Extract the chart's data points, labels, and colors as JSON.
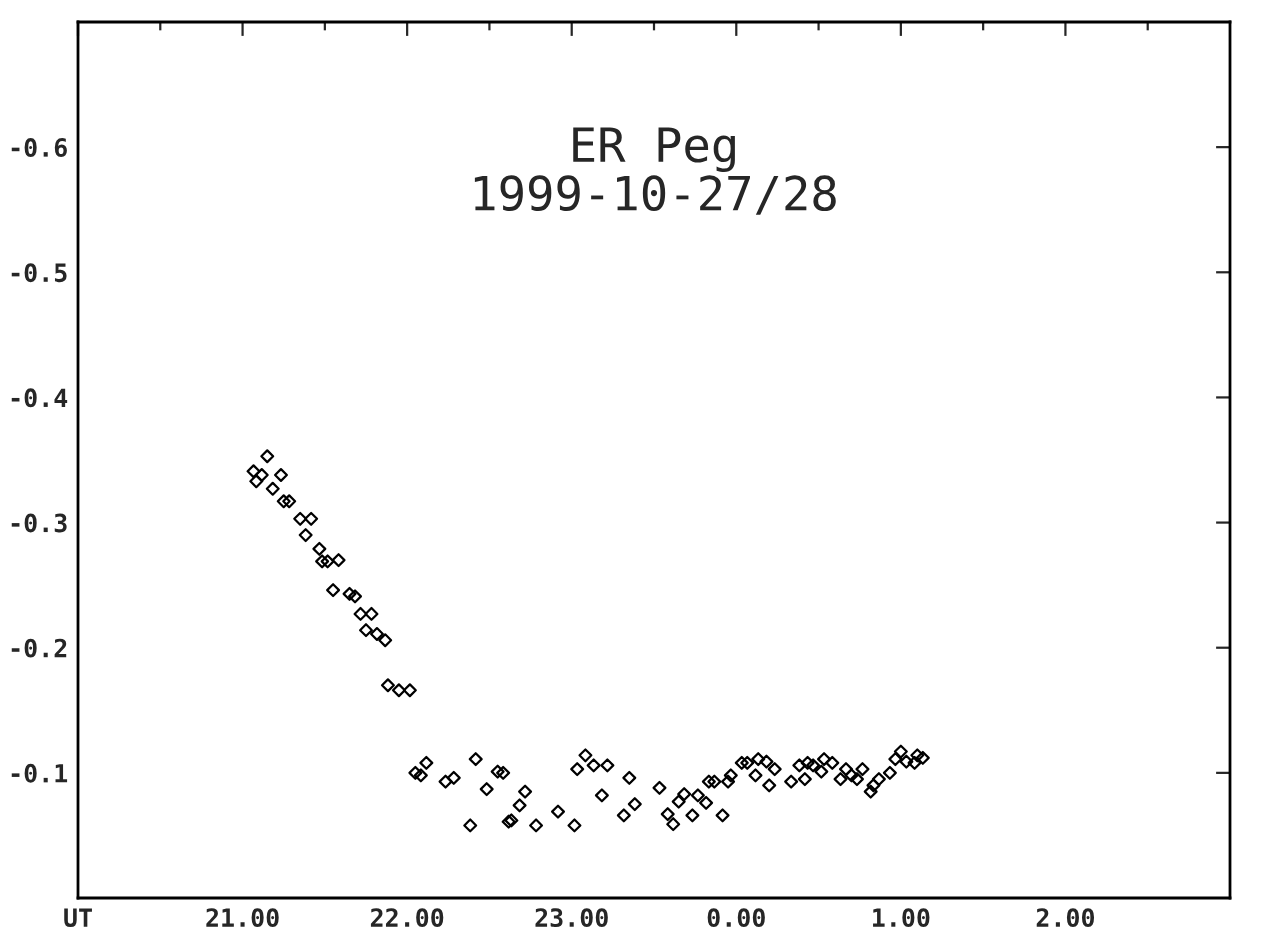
{
  "chart_data": {
    "type": "scatter",
    "title": "ER Peg",
    "subtitle": "1999-10-27/28",
    "x": [
      "1999-10-27T21:09",
      "1999-10-27T21:04",
      "1999-10-27T21:07",
      "1999-10-27T21:05",
      "1999-10-27T21:14",
      "1999-10-27T21:11",
      "1999-10-27T21:15",
      "1999-10-27T21:17",
      "1999-10-27T21:21",
      "1999-10-27T21:25",
      "1999-10-27T21:23",
      "1999-10-27T21:28",
      "1999-10-27T21:29",
      "1999-10-27T21:31",
      "1999-10-27T21:35",
      "1999-10-27T21:33",
      "1999-10-27T21:39",
      "1999-10-27T21:41",
      "1999-10-27T21:43",
      "1999-10-27T21:47",
      "1999-10-27T21:45",
      "1999-10-27T21:49",
      "1999-10-27T21:52",
      "1999-10-27T21:53",
      "1999-10-27T21:57",
      "1999-10-27T22:01",
      "1999-10-27T22:03",
      "1999-10-27T22:05",
      "1999-10-27T22:07",
      "1999-10-27T22:14",
      "1999-10-27T22:17",
      "1999-10-27T22:23",
      "1999-10-27T22:25",
      "1999-10-27T22:29",
      "1999-10-27T22:33",
      "1999-10-27T22:35",
      "1999-10-27T22:37",
      "1999-10-27T22:38",
      "1999-10-27T22:41",
      "1999-10-27T22:43",
      "1999-10-27T22:47",
      "1999-10-27T22:55",
      "1999-10-27T23:01",
      "1999-10-27T23:02",
      "1999-10-27T23:05",
      "1999-10-27T23:08",
      "1999-10-27T23:11",
      "1999-10-27T23:13",
      "1999-10-27T23:21",
      "1999-10-27T23:19",
      "1999-10-27T23:23",
      "1999-10-27T23:32",
      "1999-10-27T23:35",
      "1999-10-27T23:37",
      "1999-10-27T23:39",
      "1999-10-27T23:41",
      "1999-10-27T23:44",
      "1999-10-27T23:46",
      "1999-10-27T23:49",
      "1999-10-27T23:50",
      "1999-10-27T23:52",
      "1999-10-27T23:55",
      "1999-10-27T23:57",
      "1999-10-27T23:58",
      "1999-10-28T00:02",
      "1999-10-28T00:04",
      "1999-10-28T00:07",
      "1999-10-28T00:08",
      "1999-10-28T00:11",
      "1999-10-28T00:12",
      "1999-10-28T00:14",
      "1999-10-28T00:20",
      "1999-10-28T00:23",
      "1999-10-28T00:25",
      "1999-10-28T00:26",
      "1999-10-28T00:28",
      "1999-10-28T00:31",
      "1999-10-28T00:32",
      "1999-10-28T00:35",
      "1999-10-28T00:38",
      "1999-10-28T00:40",
      "1999-10-28T00:42",
      "1999-10-28T00:44",
      "1999-10-28T00:46",
      "1999-10-28T00:49",
      "1999-10-28T00:50",
      "1999-10-28T00:52",
      "1999-10-28T00:56",
      "1999-10-28T00:58",
      "1999-10-28T01:00",
      "1999-10-28T01:02",
      "1999-10-28T01:05",
      "1999-10-28T01:06",
      "1999-10-28T01:08"
    ],
    "series": [
      {
        "color": "#000000",
        "values": [
          -0.353,
          -0.341,
          -0.338,
          -0.333,
          -0.338,
          -0.327,
          -0.317,
          -0.317,
          -0.303,
          -0.303,
          -0.29,
          -0.279,
          -0.269,
          -0.269,
          -0.27,
          -0.246,
          -0.243,
          -0.241,
          -0.227,
          -0.227,
          -0.214,
          -0.211,
          -0.206,
          -0.17,
          -0.166,
          -0.166,
          -0.1,
          -0.098,
          -0.108,
          -0.093,
          -0.096,
          -0.058,
          -0.111,
          -0.087,
          -0.101,
          -0.1,
          -0.061,
          -0.062,
          -0.074,
          -0.085,
          -0.058,
          -0.069,
          -0.058,
          -0.103,
          -0.114,
          -0.106,
          -0.082,
          -0.106,
          -0.096,
          -0.066,
          -0.075,
          -0.088,
          -0.067,
          -0.059,
          -0.077,
          -0.083,
          -0.066,
          -0.082,
          -0.076,
          -0.093,
          -0.093,
          -0.066,
          -0.093,
          -0.098,
          -0.108,
          -0.108,
          -0.098,
          -0.111,
          -0.109,
          -0.09,
          -0.103,
          -0.093,
          -0.106,
          -0.095,
          -0.108,
          -0.106,
          -0.101,
          -0.111,
          -0.108,
          -0.095,
          -0.103,
          -0.098,
          -0.095,
          -0.103,
          -0.085,
          -0.09,
          -0.095,
          -0.1,
          -0.111,
          -0.117,
          -0.109,
          -0.108,
          -0.114,
          -0.112
        ]
      }
    ],
    "xlim": [
      "1999-10-27T20:00",
      "1999-10-28T03:00"
    ],
    "ylim": [
      0,
      -0.7
    ],
    "xticks": [
      {
        "value": "1999-10-27T20:00",
        "label": "UT"
      },
      {
        "value": "1999-10-27T20:30",
        "label": null
      },
      {
        "value": "1999-10-27T21:00",
        "label": "21.00"
      },
      {
        "value": "1999-10-27T21:30",
        "label": null
      },
      {
        "value": "1999-10-27T22:00",
        "label": "22.00"
      },
      {
        "value": "1999-10-27T22:30",
        "label": null
      },
      {
        "value": "1999-10-27T23:00",
        "label": "23.00"
      },
      {
        "value": "1999-10-27T23:30",
        "label": null
      },
      {
        "value": "1999-10-28T00:00",
        "label": "0.00"
      },
      {
        "value": "1999-10-28T00:30",
        "label": null
      },
      {
        "value": "1999-10-28T01:00",
        "label": "1.00"
      },
      {
        "value": "1999-10-28T01:30",
        "label": null
      },
      {
        "value": "1999-10-28T02:00",
        "label": "2.00"
      },
      {
        "value": "1999-10-28T02:30",
        "label": null
      }
    ],
    "yticks": [
      {
        "value": -0.1,
        "label": "-0.1"
      },
      {
        "value": -0.2,
        "label": "-0.2"
      },
      {
        "value": -0.3,
        "label": "-0.3"
      },
      {
        "value": -0.4,
        "label": "-0.4"
      },
      {
        "value": -0.5,
        "label": "-0.5"
      },
      {
        "value": -0.6,
        "label": "-0.6"
      }
    ],
    "marker": "diamond",
    "grid": false,
    "legend": false
  }
}
